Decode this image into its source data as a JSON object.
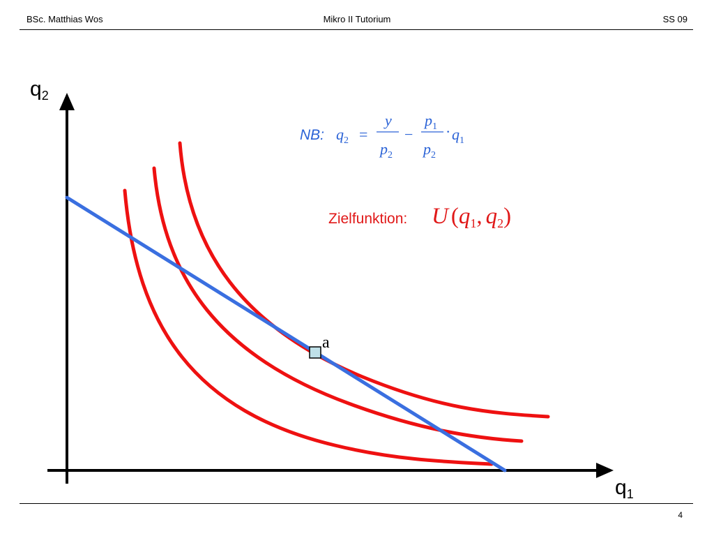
{
  "header": {
    "author": "BSc. Matthias Wos",
    "course": "Mikro II Tutorium",
    "term": "SS 09"
  },
  "footer": {
    "page_number": "4"
  },
  "axes": {
    "y_label": "q",
    "y_label_sub": "2",
    "x_label": "q",
    "x_label_sub": "1"
  },
  "budget_constraint": {
    "prefix": "NB:",
    "lhs": "q",
    "lhs_sub": "2",
    "equals": "=",
    "frac1_num": "y",
    "frac1_den": "p",
    "frac1_den_sub": "2",
    "minus": "−",
    "frac2_num": "p",
    "frac2_num_sub": "1",
    "frac2_den": "p",
    "frac2_den_sub": "2",
    "times": "·",
    "rhs": "q",
    "rhs_sub": "1"
  },
  "objective": {
    "label": "Zielfunktion:",
    "func": "U",
    "open": "(",
    "arg1": "q",
    "arg1_sub": "1",
    "sep": ",",
    "arg2": "q",
    "arg2_sub": "2",
    "close": ")"
  },
  "point": {
    "label": "a"
  },
  "colors": {
    "indifference_curve": "#ee1111",
    "budget_line": "#3a6fe0",
    "point_fill": "#bfe0e8",
    "constraint_text": "#2a62d6",
    "objective_text": "#e01818"
  }
}
